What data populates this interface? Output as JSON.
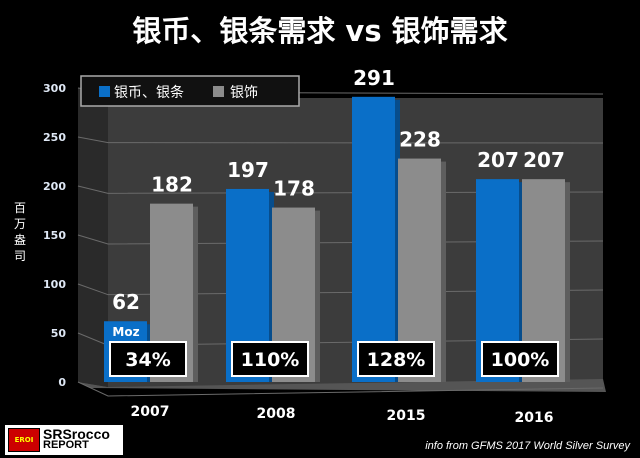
{
  "chart_data": {
    "type": "bar",
    "title": "银币、银条需求 vs 银饰需求",
    "ylabel": "百万盎司",
    "xlabel": "",
    "ylim": [
      0,
      300
    ],
    "yticks": [
      0,
      50,
      100,
      150,
      200,
      250,
      300
    ],
    "categories": [
      "2007",
      "2008",
      "2015",
      "2016"
    ],
    "series": [
      {
        "name": "银币、银条",
        "color": "#0a6fc8",
        "values": [
          62,
          197,
          291,
          207
        ]
      },
      {
        "name": "银饰",
        "color": "#8c8c8c",
        "values": [
          182,
          178,
          228,
          207
        ]
      }
    ],
    "unit_annotation": "Moz",
    "ratio_labels": [
      "34%",
      "110%",
      "128%",
      "100%"
    ],
    "legend_position": "top-left",
    "grid": true
  },
  "footer": {
    "logo_text": "SRSrocco REPORT",
    "logo_emblem": "EROI",
    "source": "info from GFMS 2017 World Silver Survey"
  }
}
